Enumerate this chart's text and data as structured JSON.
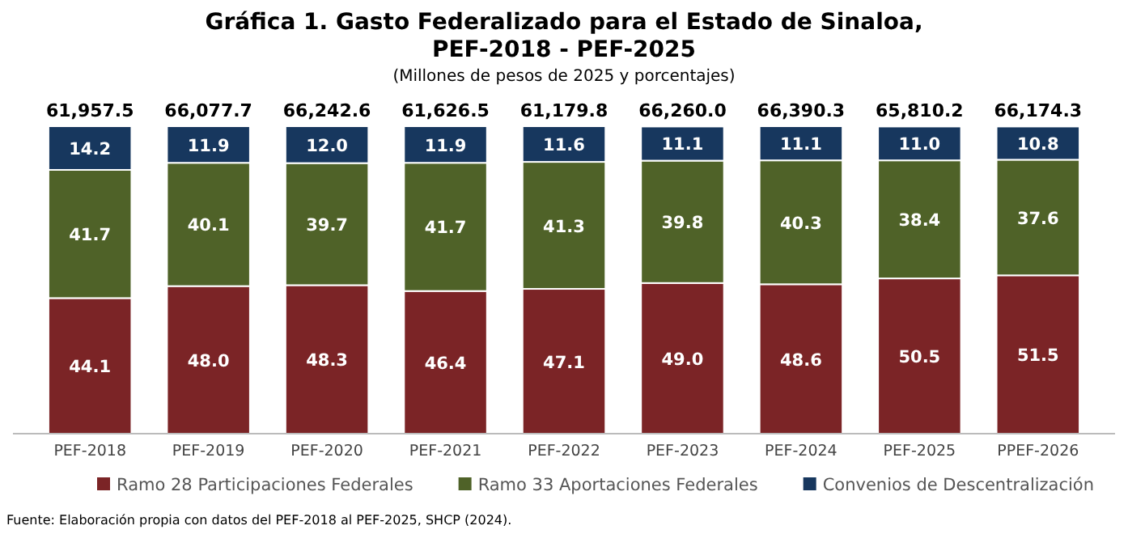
{
  "chart_data": {
    "type": "bar",
    "stacked": true,
    "legend": "bottom",
    "title": "Gráfica 1. Gasto Federalizado para el Estado de Sinaloa, PEF-2018 - PEF-2025",
    "subtitle": "(Millones de pesos de 2025 y porcentajes)",
    "categories": [
      "PEF-2018",
      "PEF-2019",
      "PEF-2020",
      "PEF-2021",
      "PEF-2022",
      "PEF-2023",
      "PEF-2024",
      "PEF-2025",
      "PPEF-2026"
    ],
    "series": [
      {
        "name": "Ramo 28 Participaciones Federales",
        "color": "#7b2426",
        "values": [
          44.1,
          48.0,
          48.3,
          46.4,
          47.1,
          49.0,
          48.6,
          50.5,
          51.5
        ],
        "value_labels": [
          "44.1",
          "48.0",
          "48.3",
          "46.4",
          "47.1",
          "49.0",
          "48.6",
          "50.5",
          "51.5"
        ]
      },
      {
        "name": "Ramo 33 Aportaciones Federales",
        "color": "#4f6228",
        "values": [
          41.7,
          40.1,
          39.7,
          41.7,
          41.3,
          39.8,
          40.3,
          38.4,
          37.6
        ],
        "value_labels": [
          "41.7",
          "40.1",
          "39.7",
          "41.7",
          "41.3",
          "39.8",
          "40.3",
          "38.4",
          "37.6"
        ]
      },
      {
        "name": "Convenios de Descentralización",
        "color": "#17375e",
        "values": [
          14.2,
          11.9,
          12.0,
          11.9,
          11.6,
          11.1,
          11.1,
          11.0,
          10.8
        ],
        "value_labels": [
          "14.2",
          "11.9",
          "12.0",
          "11.9",
          "11.6",
          "11.1",
          "11.1",
          "11.0",
          "10.8"
        ]
      }
    ],
    "annotations": [
      {
        "text": "61,957.5",
        "x": "PEF-2018",
        "y": 100
      },
      {
        "text": "66,077.7",
        "x": "PEF-2019",
        "y": 100
      },
      {
        "text": "66,242.6",
        "x": "PEF-2020",
        "y": 100
      },
      {
        "text": "61,626.5",
        "x": "PEF-2021",
        "y": 100
      },
      {
        "text": "61,179.8",
        "x": "PEF-2022",
        "y": 100
      },
      {
        "text": "66,260.0",
        "x": "PEF-2023",
        "y": 100
      },
      {
        "text": "66,390.3",
        "x": "PEF-2024",
        "y": 100
      },
      {
        "text": "65,810.2",
        "x": "PEF-2025",
        "y": 100
      },
      {
        "text": "66,174.3",
        "x": "PPEF-2026",
        "y": 100
      },
      "Fuente: Elaboración propia con datos del PEF-2018 al PEF-2025, SHCP (2024)."
    ]
  }
}
